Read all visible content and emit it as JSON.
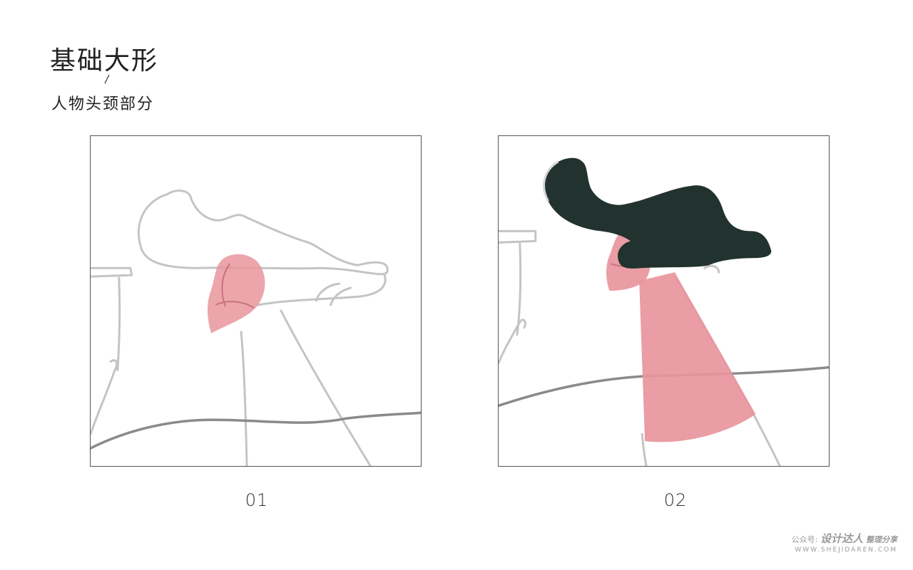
{
  "heading": {
    "title": "基础大形",
    "subtitle": "人物头颈部分"
  },
  "panels": [
    {
      "label": "01"
    },
    {
      "label": "02"
    }
  ],
  "colors": {
    "skin": "#e8959c",
    "hair": "#22332f",
    "sketch": "#bdbdbd",
    "border": "#555555"
  },
  "watermark": {
    "prefix": "公众号:",
    "brand": "设计达人",
    "suffix": "整理分享",
    "site": "WWW.SHEJIDAREN.COM"
  }
}
